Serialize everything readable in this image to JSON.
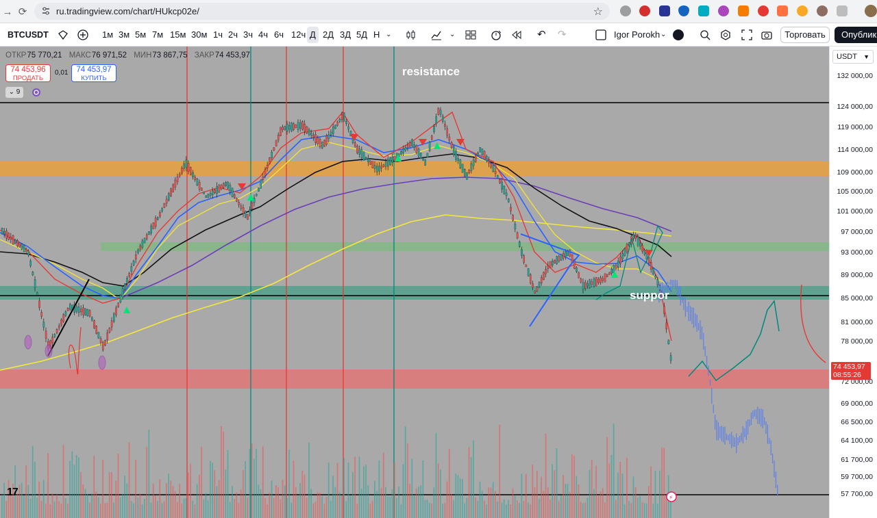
{
  "browser": {
    "url": "ru.tradingview.com/chart/HUkcp02e/"
  },
  "toolbar": {
    "symbol": "BTCUSDT",
    "intervals": [
      "1м",
      "3м",
      "5м",
      "7м",
      "15м",
      "30м",
      "1ч",
      "2ч",
      "3ч",
      "4ч",
      "6ч",
      "12ч",
      "Д",
      "2Д",
      "3Д",
      "5Д",
      "Н"
    ],
    "active_interval": "Д",
    "account": "Igor Porokh",
    "trade_label": "Торговать",
    "publish_label": "Опублико"
  },
  "legend": {
    "open_label": "ОТКР",
    "open": "75 770,21",
    "high_label": "МАКС",
    "high": "76 971,52",
    "low_label": "МИН",
    "low": "73 867,75",
    "close_label": "ЗАКР",
    "close": "74 453,97",
    "sell_price": "74 453,96",
    "sell_label": "ПРОДАТЬ",
    "spread": "0,01",
    "buy_price": "74 453,97",
    "buy_label": "КУПИТЬ",
    "indicator_toggle": "9"
  },
  "annotations": {
    "resistance": "resistance",
    "support": "suppor"
  },
  "price_axis": {
    "currency": "USDT",
    "labels": [
      "132 000,00",
      "124 000,00",
      "119 000,00",
      "114 000,00",
      "109 000,00",
      "105 000,00",
      "101 000,00",
      "97 000,00",
      "93 000,00",
      "89 000,00",
      "85 000,00",
      "81 000,00",
      "78 000,00",
      "72 000,00",
      "69 000,00",
      "66 500,00",
      "64 100,00",
      "61 700,00",
      "59 700,00",
      "57 700,00"
    ],
    "current_price": "74 453,97",
    "countdown": "08:55:26"
  },
  "colors": {
    "chart_bg": "#a9a9a9",
    "up": "#26a69a",
    "down": "#ef5350",
    "sell": "#e53935",
    "buy": "#2962ff",
    "zone_orange": "#f0a030",
    "zone_green": "#6fbf73",
    "zone_teal": "#2e9e80",
    "zone_red": "#e57373"
  }
}
